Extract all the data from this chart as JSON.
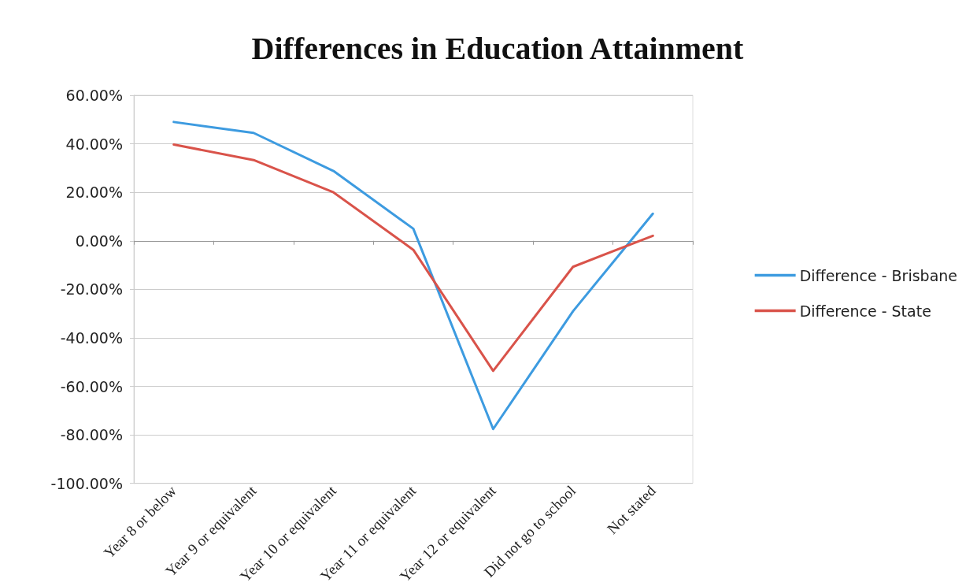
{
  "chart_data": {
    "type": "line",
    "title": "Differences in Education Attainment",
    "categories": [
      "Year 8 or below",
      "Year 9 or equivalent",
      "Year 10 or equivalent",
      "Year 11 or equivalent",
      "Year 12 or equivalent",
      "Did not go to school",
      "Not stated"
    ],
    "series": [
      {
        "name": "Difference - Brisbane",
        "color": "#3d9be0",
        "values": [
          49,
          44.5,
          28.8,
          5,
          -77.6,
          -29,
          11.2
        ]
      },
      {
        "name": "Difference - State",
        "color": "#d9534a",
        "values": [
          39.7,
          33.3,
          20,
          -3.7,
          -53.6,
          -10.7,
          2.1
        ]
      }
    ],
    "ylim": [
      -100,
      60
    ],
    "yticks": [
      {
        "value": -100,
        "label": "-100.00%"
      },
      {
        "value": -80,
        "label": "-80.00%"
      },
      {
        "value": -60,
        "label": "-60.00%"
      },
      {
        "value": -40,
        "label": "-40.00%"
      },
      {
        "value": -20,
        "label": "-20.00%"
      },
      {
        "value": 0,
        "label": "0.00%"
      },
      {
        "value": 20,
        "label": "20.00%"
      },
      {
        "value": 40,
        "label": "40.00%"
      },
      {
        "value": 60,
        "label": "60.00%"
      }
    ],
    "grid": "y",
    "legend": "right",
    "marker": "none",
    "line_style": "solid"
  }
}
